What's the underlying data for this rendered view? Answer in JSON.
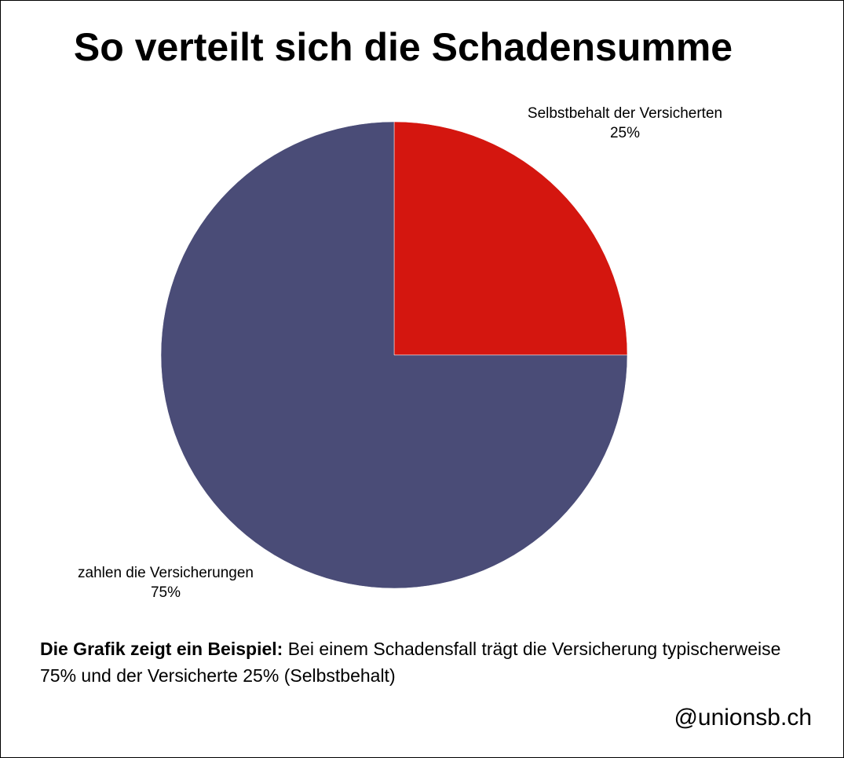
{
  "chart_data": {
    "type": "pie",
    "title": "So verteilt sich die Schadensumme",
    "slices": [
      {
        "label": "Selbstbehalt der Versicherten",
        "value": 25,
        "value_label": "25%",
        "color": "#D4160F"
      },
      {
        "label": "zahlen die Versicherungen",
        "value": 75,
        "value_label": "75%",
        "color": "#4A4C77"
      }
    ],
    "start_angle": "12 o'clock, clockwise"
  },
  "note": {
    "bold": "Die Grafik zeigt ein Beispiel:",
    "text": " Bei einem Schadensfall trägt die Versicherung typischerweise 75% und der Versicherte 25% (Selbstbehalt)"
  },
  "credit": "@unionsb.ch"
}
